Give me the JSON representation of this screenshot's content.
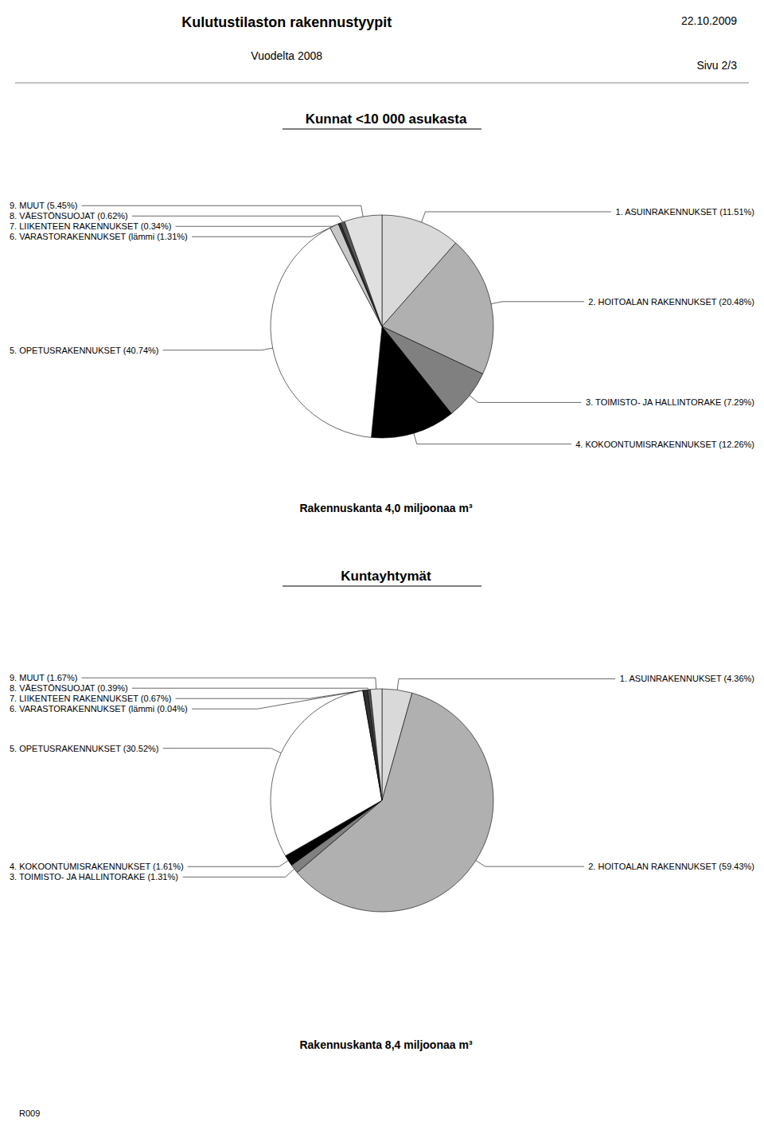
{
  "title": "Kulutustilaston rakennustyypit",
  "subtitle": "Vuodelta 2008",
  "annotations": [
    "22.10.2009",
    "Sivu 2/3",
    "R009"
  ],
  "chart_data": [
    {
      "type": "pie",
      "title": "Kunnat <10 000 asukasta",
      "subtitle": "Rakennuskanta 4,0 miljoonaa m³",
      "categories": [
        "1. ASUINRAKENNUKSET (11.51%)",
        "2. HOITOALAN RAKENNUKSET (20.48%)",
        "3. TOIMISTO- JA HALLINTORAKE (7.29%)",
        "4. KOKOONTUMISRAKENNUKSET (12.26%)",
        "5. OPETUSRAKENNUKSET (40.74%)",
        "6. VARASTORAKENNUKSET (lämmi (1.31%)",
        "7. LIIKENTEEN RAKENNUKSET (0.34%)",
        "8. VÄESTÖNSUOJAT (0.62%)",
        "9. MUUT (5.45%)"
      ],
      "values": [
        11.51,
        20.48,
        7.29,
        12.26,
        40.74,
        1.31,
        0.34,
        0.62,
        5.45
      ],
      "colors": [
        "#d9d9d9",
        "#b0b0b0",
        "#808080",
        "#000000",
        "#ffffff",
        "#c8c8c8",
        "#303030",
        "#555555",
        "#e0e0e0"
      ]
    },
    {
      "type": "pie",
      "title": "Kuntayhtymät",
      "subtitle": "Rakennuskanta 8,4 miljoonaa m³",
      "categories": [
        "1. ASUINRAKENNUKSET (4.36%)",
        "2. HOITOALAN RAKENNUKSET (59.43%)",
        "3. TOIMISTO- JA HALLINTORAKE (1.31%)",
        "4. KOKOONTUMISRAKENNUKSET (1.61%)",
        "5. OPETUSRAKENNUKSET (30.52%)",
        "6. VARASTORAKENNUKSET (lämmi (0.04%)",
        "7. LIIKENTEEN RAKENNUKSET (0.67%)",
        "8. VÄESTÖNSUOJAT (0.39%)",
        "9. MUUT (1.67%)"
      ],
      "values": [
        4.36,
        59.43,
        1.31,
        1.61,
        30.52,
        0.04,
        0.67,
        0.39,
        1.67
      ],
      "colors": [
        "#d9d9d9",
        "#b0b0b0",
        "#808080",
        "#000000",
        "#ffffff",
        "#c8c8c8",
        "#303030",
        "#555555",
        "#e0e0e0"
      ]
    }
  ]
}
